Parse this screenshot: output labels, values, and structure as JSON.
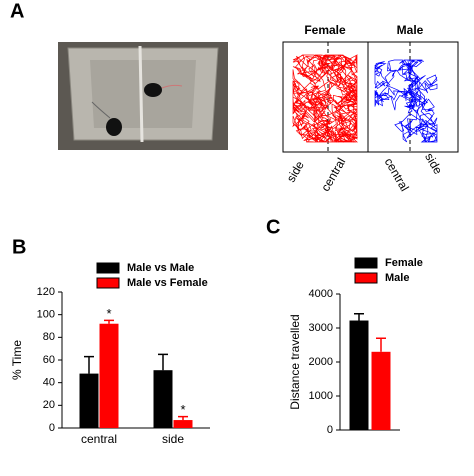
{
  "panel_labels": [
    "A",
    "B",
    "C"
  ],
  "trajectory": {
    "titles": [
      "Female",
      "Male"
    ],
    "zone_labels": [
      "side",
      "central",
      "central",
      "side"
    ]
  },
  "chart_data": [
    {
      "type": "bar",
      "ylabel": "% Time",
      "categories": [
        "central",
        "side"
      ],
      "series": [
        {
          "name": "Male vs Male",
          "color": "#000000",
          "values": [
            48,
            51
          ],
          "errors": [
            15,
            14
          ]
        },
        {
          "name": "Male vs Female",
          "color": "#ff0000",
          "values": [
            92,
            7
          ],
          "errors": [
            3,
            3
          ],
          "significance": [
            "*",
            "*"
          ]
        }
      ],
      "ylim": [
        0,
        120
      ],
      "yticks": [
        0,
        20,
        40,
        60,
        80,
        100,
        120
      ]
    },
    {
      "type": "bar",
      "ylabel": "Distance travelled",
      "categories": [
        null
      ],
      "series": [
        {
          "name": "Female",
          "color": "#000000",
          "values": [
            3220
          ],
          "errors": [
            200
          ]
        },
        {
          "name": "Male",
          "color": "#ff0000",
          "values": [
            2300
          ],
          "errors": [
            400
          ]
        }
      ],
      "ylim": [
        0,
        4000
      ],
      "yticks": [
        0,
        1000,
        2000,
        3000,
        4000
      ]
    }
  ]
}
